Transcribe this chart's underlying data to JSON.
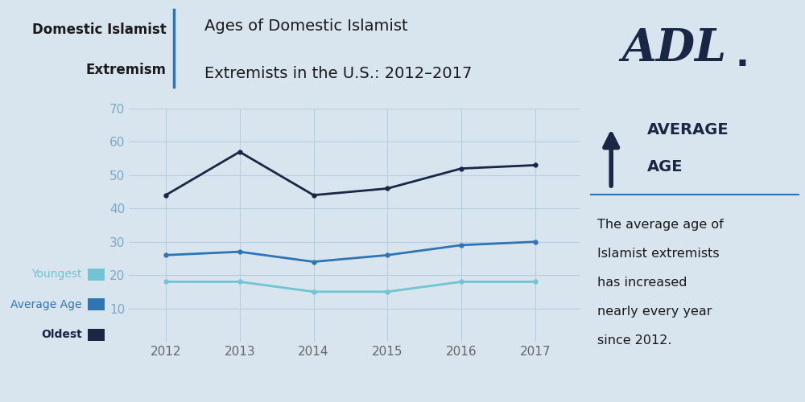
{
  "years": [
    2012,
    2013,
    2014,
    2015,
    2016,
    2017
  ],
  "oldest": [
    44,
    57,
    44,
    46,
    52,
    53
  ],
  "average": [
    26,
    27,
    24,
    26,
    29,
    30
  ],
  "youngest": [
    18,
    18,
    15,
    15,
    18,
    18
  ],
  "oldest_color": "#1a2744",
  "average_color": "#2e75b6",
  "youngest_color": "#70c4d4",
  "bg_color": "#d8e4ee",
  "grid_color": "#b8cfe0",
  "title_left_line1": "Domestic Islamist",
  "title_left_line2": "Extremism",
  "title_main_line1": "Ages of Domestic Islamist",
  "title_main_line2": "Extremists in the U.S.: 2012–2017",
  "sidebar_text": "The average age of\nIslamist extremists\nhas increased\nnearly every year\nsince 2012.",
  "legend_youngest": "Youngest",
  "legend_average": "Average Age",
  "legend_oldest": "Oldest",
  "ylim": [
    0,
    70
  ],
  "yticks": [
    10,
    20,
    30,
    40,
    50,
    60,
    70
  ],
  "divider_color": "#2e75b6",
  "dark_color": "#1a2744",
  "text_dark": "#1a1a1a",
  "tick_color": "#7aaac8",
  "xtick_color": "#666666"
}
